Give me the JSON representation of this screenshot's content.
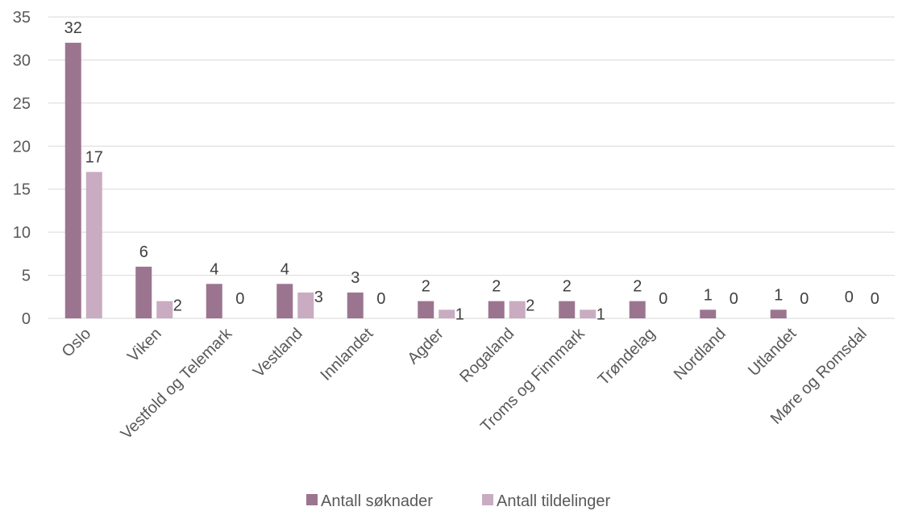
{
  "chart_data": {
    "type": "bar",
    "categories": [
      "Oslo",
      "Viken",
      "Vestfold og Telemark",
      "Vestland",
      "Innlandet",
      "Agder",
      "Rogaland",
      "Troms og Finnmark",
      "Trøndelag",
      "Nordland",
      "Utlandet",
      "Møre og Romsdal"
    ],
    "series": [
      {
        "name": "Antall søknader",
        "color": "#9b7590",
        "values": [
          32,
          6,
          4,
          4,
          3,
          2,
          2,
          2,
          2,
          1,
          1,
          0
        ]
      },
      {
        "name": "Antall tildelinger",
        "color": "#c9acc1",
        "values": [
          17,
          2,
          0,
          3,
          0,
          1,
          2,
          1,
          0,
          0,
          0,
          0
        ]
      }
    ],
    "ylim": [
      0,
      35
    ],
    "yticks": [
      0,
      5,
      10,
      15,
      20,
      25,
      30,
      35
    ],
    "grid": true,
    "legend": "bottom",
    "data_labels": true
  }
}
